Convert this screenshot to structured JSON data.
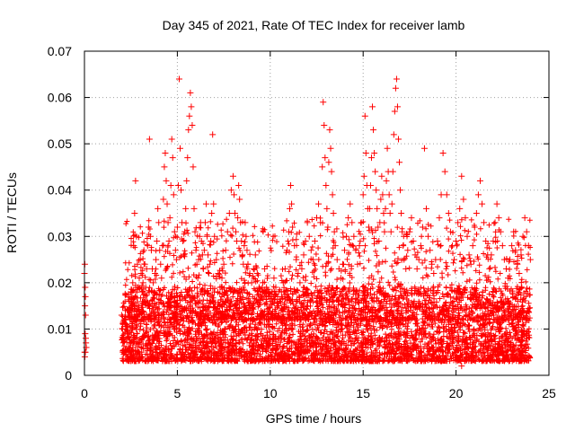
{
  "chart_data": {
    "type": "scatter",
    "title": "Day 345 of 2021, Rate Of TEC Index for receiver lamb",
    "xlabel": "GPS time / hours",
    "ylabel": "ROTI / TECUs",
    "xlim": [
      0,
      25
    ],
    "ylim": [
      0,
      0.07
    ],
    "xticks": [
      0,
      5,
      10,
      15,
      20,
      25
    ],
    "xtick_labels": [
      "0",
      "5",
      "10",
      "15",
      "20",
      "25"
    ],
    "yticks": [
      0,
      0.01,
      0.02,
      0.03,
      0.04,
      0.05,
      0.06,
      0.07
    ],
    "ytick_labels": [
      "0",
      "0.01",
      "0.02",
      "0.03",
      "0.04",
      "0.05",
      "0.06",
      "0.07"
    ],
    "grid": true,
    "marker": "+",
    "series": [
      {
        "name": "ROTI",
        "color": "#ff0000",
        "x": [
          0.0,
          0.02,
          0.04,
          0.05,
          0.07,
          0.1,
          0.02,
          0.05,
          0.08,
          0.03,
          0.06,
          0.04,
          0.01,
          0.09,
          2.0,
          2.05,
          2.1,
          2.15,
          2.2,
          2.25,
          2.3,
          2.35,
          2.4,
          2.45,
          2.5,
          2.55,
          2.6,
          2.65,
          2.7,
          2.75,
          2.8,
          2.85,
          2.9,
          2.95,
          3.0,
          3.05,
          3.1,
          3.15,
          3.2,
          3.25,
          3.3,
          3.35,
          3.4,
          3.45,
          3.5,
          3.55,
          3.6,
          3.65,
          3.7,
          3.75,
          3.8,
          3.85,
          3.9,
          3.95,
          4.0,
          4.05,
          4.1,
          4.15,
          4.2,
          4.25,
          4.3,
          4.35,
          4.4,
          4.45,
          4.5,
          4.55,
          4.6,
          4.65,
          4.7,
          4.75,
          4.8,
          4.85,
          4.9,
          4.95,
          5.0,
          5.05,
          5.1,
          5.15,
          5.2,
          5.25,
          5.3,
          5.35,
          5.4,
          5.45,
          5.5,
          5.55,
          5.6,
          5.65,
          5.7,
          5.75,
          5.8,
          5.85,
          5.9,
          5.95,
          6.0,
          6.05,
          6.1,
          6.15,
          6.2,
          6.25,
          6.3,
          6.35,
          6.4,
          6.45,
          6.5,
          6.55,
          6.6,
          6.65,
          6.7,
          6.75,
          6.8,
          6.85,
          6.9,
          6.95,
          7.0,
          7.1,
          7.2,
          7.3,
          7.4,
          7.5,
          7.6,
          7.7,
          7.8,
          7.9,
          8.0,
          8.05,
          8.1,
          8.15,
          8.2,
          8.25,
          8.3,
          8.35,
          8.4,
          8.45,
          8.5,
          8.55,
          8.6,
          8.65,
          8.7,
          8.75,
          8.8,
          8.9,
          9.0,
          9.1,
          9.2,
          9.3,
          9.4,
          9.5,
          9.6,
          9.7,
          9.8,
          9.9,
          10.0,
          10.1,
          10.2,
          10.3,
          10.4,
          10.5,
          10.6,
          10.7,
          10.8,
          10.9,
          11.0,
          11.05,
          11.1,
          11.15,
          11.2,
          11.3,
          11.4,
          11.5,
          11.6,
          11.7,
          11.8,
          11.9,
          12.0,
          12.1,
          12.2,
          12.3,
          12.4,
          12.5,
          12.6,
          12.7,
          12.8,
          12.85,
          12.9,
          12.95,
          13.0,
          13.05,
          13.1,
          13.15,
          13.2,
          13.25,
          13.3,
          13.35,
          13.4,
          13.45,
          13.5,
          13.6,
          13.7,
          13.8,
          13.9,
          14.0,
          14.1,
          14.2,
          14.3,
          14.4,
          14.5,
          14.6,
          14.7,
          14.8,
          14.9,
          15.0,
          15.05,
          15.1,
          15.15,
          15.2,
          15.25,
          15.3,
          15.35,
          15.4,
          15.45,
          15.5,
          15.55,
          15.6,
          15.65,
          15.7,
          15.75,
          15.8,
          15.85,
          15.9,
          15.95,
          16.0,
          16.05,
          16.1,
          16.15,
          16.2,
          16.25,
          16.3,
          16.35,
          16.4,
          16.45,
          16.5,
          16.55,
          16.6,
          16.65,
          16.7,
          16.75,
          16.8,
          16.85,
          16.9,
          16.95,
          17.0,
          17.05,
          17.1,
          17.15,
          17.2,
          17.3,
          17.4,
          17.5,
          17.6,
          17.7,
          17.8,
          17.9,
          18.0,
          18.1,
          18.2,
          18.3,
          18.4,
          18.5,
          18.6,
          18.7,
          18.8,
          18.9,
          19.0,
          19.1,
          19.2,
          19.3,
          19.4,
          19.5,
          19.6,
          19.7,
          19.8,
          19.9,
          20.0,
          20.1,
          20.2,
          20.3,
          20.4,
          20.5,
          20.6,
          20.7,
          20.8,
          20.9,
          21.0,
          21.1,
          21.2,
          21.3,
          21.4,
          21.5,
          21.6,
          21.7,
          21.8,
          21.9,
          22.0,
          22.1,
          22.2,
          22.3,
          22.4,
          22.5,
          22.6,
          22.7,
          22.8,
          22.9,
          23.0,
          23.1,
          23.2,
          23.3,
          23.4,
          23.5,
          23.6,
          23.7,
          23.8,
          23.9,
          24.0,
          2.6,
          3.1,
          3.7,
          4.3,
          4.9,
          5.4,
          6.1,
          6.6,
          7.2,
          7.8,
          8.3,
          8.9,
          9.4,
          10.1,
          10.6,
          11.2,
          11.8,
          12.3,
          12.9,
          13.4,
          14.1,
          14.6,
          15.2,
          15.8,
          16.3,
          16.9,
          17.4,
          18.1,
          18.6,
          19.2,
          19.8,
          20.3,
          20.9,
          21.4,
          22.1,
          22.6,
          23.2,
          23.8,
          2.4,
          3.4,
          4.6,
          5.7,
          6.9,
          8.1,
          9.2,
          10.4,
          11.6,
          12.6,
          13.7,
          14.9,
          16.1,
          17.3,
          18.4,
          19.6,
          20.7,
          21.9,
          23.0,
          23.6
        ],
        "y": [
          0.022,
          0.024,
          0.019,
          0.017,
          0.008,
          0.006,
          0.004,
          0.005,
          0.007,
          0.015,
          0.013,
          0.009,
          0.005,
          0.006,
          0.013,
          0.01,
          0.008,
          0.012,
          0.014,
          0.011,
          0.009,
          0.013,
          0.016,
          0.012,
          0.018,
          0.015,
          0.02,
          0.028,
          0.035,
          0.042,
          0.03,
          0.024,
          0.019,
          0.021,
          0.025,
          0.022,
          0.018,
          0.02,
          0.027,
          0.024,
          0.019,
          0.023,
          0.028,
          0.032,
          0.051,
          0.03,
          0.027,
          0.023,
          0.02,
          0.018,
          0.022,
          0.025,
          0.029,
          0.036,
          0.033,
          0.027,
          0.024,
          0.021,
          0.028,
          0.038,
          0.045,
          0.048,
          0.042,
          0.037,
          0.033,
          0.029,
          0.034,
          0.041,
          0.051,
          0.047,
          0.039,
          0.031,
          0.027,
          0.025,
          0.032,
          0.041,
          0.064,
          0.049,
          0.04,
          0.033,
          0.029,
          0.026,
          0.031,
          0.036,
          0.042,
          0.047,
          0.053,
          0.056,
          0.061,
          0.058,
          0.054,
          0.045,
          0.036,
          0.031,
          0.027,
          0.024,
          0.021,
          0.025,
          0.03,
          0.033,
          0.029,
          0.026,
          0.023,
          0.027,
          0.033,
          0.037,
          0.03,
          0.026,
          0.022,
          0.024,
          0.029,
          0.035,
          0.052,
          0.037,
          0.03,
          0.025,
          0.022,
          0.019,
          0.021,
          0.024,
          0.027,
          0.031,
          0.035,
          0.04,
          0.043,
          0.039,
          0.035,
          0.031,
          0.029,
          0.034,
          0.041,
          0.038,
          0.033,
          0.029,
          0.026,
          0.024,
          0.028,
          0.033,
          0.03,
          0.027,
          0.024,
          0.022,
          0.02,
          0.023,
          0.026,
          0.022,
          0.019,
          0.017,
          0.02,
          0.023,
          0.019,
          0.017,
          0.016,
          0.018,
          0.021,
          0.019,
          0.017,
          0.016,
          0.018,
          0.02,
          0.023,
          0.027,
          0.031,
          0.036,
          0.041,
          0.037,
          0.032,
          0.028,
          0.025,
          0.022,
          0.02,
          0.023,
          0.026,
          0.029,
          0.033,
          0.03,
          0.027,
          0.025,
          0.029,
          0.034,
          0.037,
          0.033,
          0.045,
          0.059,
          0.054,
          0.047,
          0.041,
          0.036,
          0.032,
          0.046,
          0.053,
          0.049,
          0.044,
          0.039,
          0.035,
          0.031,
          0.028,
          0.025,
          0.023,
          0.021,
          0.024,
          0.027,
          0.03,
          0.034,
          0.037,
          0.033,
          0.03,
          0.027,
          0.024,
          0.028,
          0.033,
          0.039,
          0.043,
          0.056,
          0.048,
          0.041,
          0.036,
          0.032,
          0.036,
          0.041,
          0.047,
          0.058,
          0.053,
          0.048,
          0.044,
          0.04,
          0.036,
          0.032,
          0.029,
          0.033,
          0.038,
          0.043,
          0.039,
          0.035,
          0.031,
          0.036,
          0.042,
          0.049,
          0.044,
          0.039,
          0.035,
          0.031,
          0.037,
          0.044,
          0.052,
          0.057,
          0.062,
          0.064,
          0.058,
          0.051,
          0.046,
          0.04,
          0.035,
          0.031,
          0.028,
          0.025,
          0.023,
          0.027,
          0.031,
          0.034,
          0.029,
          0.026,
          0.023,
          0.025,
          0.028,
          0.032,
          0.049,
          0.036,
          0.03,
          0.027,
          0.024,
          0.022,
          0.025,
          0.029,
          0.034,
          0.039,
          0.048,
          0.044,
          0.039,
          0.035,
          0.031,
          0.028,
          0.025,
          0.029,
          0.033,
          0.036,
          0.043,
          0.038,
          0.034,
          0.03,
          0.026,
          0.024,
          0.028,
          0.032,
          0.035,
          0.039,
          0.042,
          0.037,
          0.033,
          0.029,
          0.026,
          0.023,
          0.026,
          0.029,
          0.033,
          0.037,
          0.034,
          0.031,
          0.028,
          0.025,
          0.023,
          0.021,
          0.025,
          0.028,
          0.031,
          0.027,
          0.024,
          0.022,
          0.026,
          0.03,
          0.034,
          0.031,
          0.028,
          0.025,
          0.006,
          0.008,
          0.005,
          0.009,
          0.007,
          0.004,
          0.006,
          0.01,
          0.008,
          0.005,
          0.009,
          0.007,
          0.006,
          0.004,
          0.008,
          0.01,
          0.005,
          0.007,
          0.009,
          0.006,
          0.004,
          0.008,
          0.01,
          0.007,
          0.005,
          0.009,
          0.006,
          0.004,
          0.008,
          0.003,
          0.007,
          0.002,
          0.006,
          0.009,
          0.005,
          0.007,
          0.004,
          0.008,
          0.013,
          0.015,
          0.012,
          0.014,
          0.016,
          0.013,
          0.011,
          0.015,
          0.012,
          0.014,
          0.016,
          0.013,
          0.015,
          0.012,
          0.014,
          0.011,
          0.013,
          0.015,
          0.012,
          0.014
        ]
      }
    ]
  }
}
